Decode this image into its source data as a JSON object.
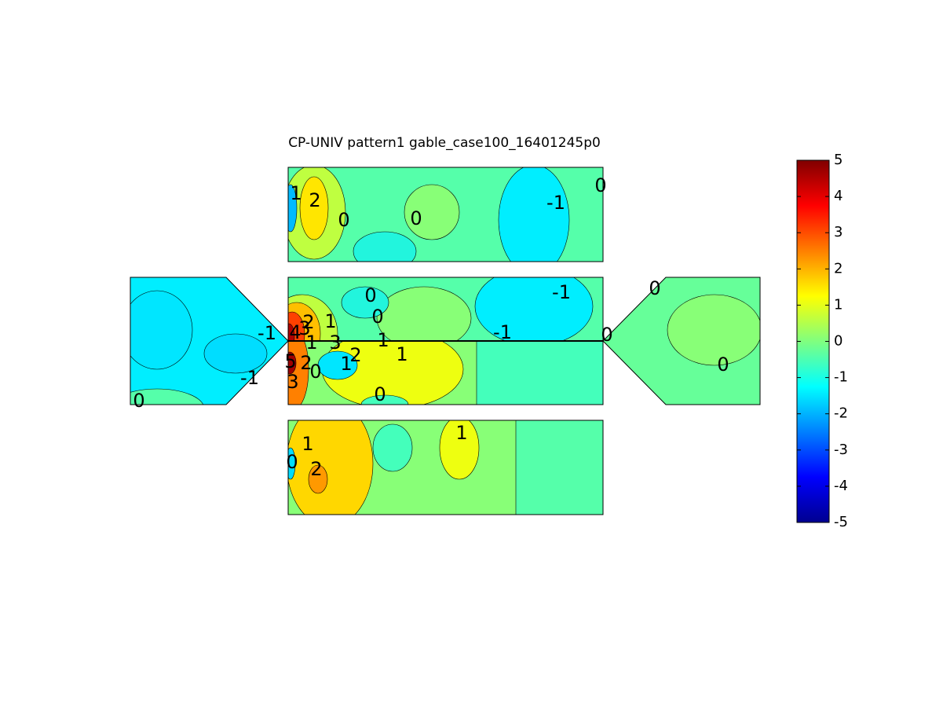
{
  "chart_data": {
    "type": "contour",
    "title": "CP-UNIV pattern1 gable_case100_16401245p0",
    "colorbar": {
      "lim": [
        -5,
        5
      ],
      "ticks": [
        -5,
        -4,
        -3,
        -2,
        -1,
        0,
        1,
        2,
        3,
        4,
        5
      ],
      "colormap": "jet"
    },
    "contour_labels": [
      1,
      2,
      0,
      0,
      -1,
      0,
      -1,
      -1,
      0,
      0,
      -1,
      0,
      1,
      2,
      4,
      3,
      1,
      3,
      1,
      -1,
      0,
      5,
      2,
      0,
      1,
      2,
      1,
      0,
      3,
      0,
      0,
      1,
      0,
      2,
      1
    ]
  }
}
